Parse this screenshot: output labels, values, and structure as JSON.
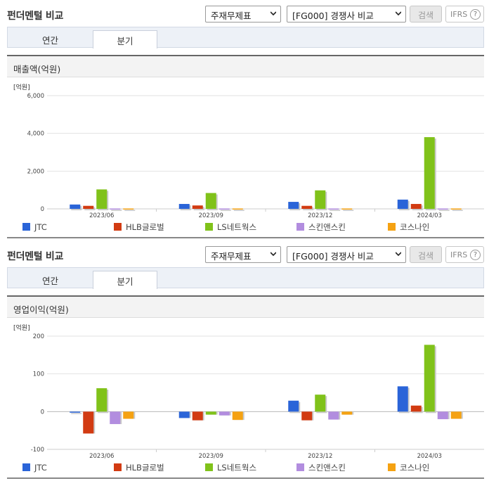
{
  "panels": [
    {
      "title": "펀더멘털 비교",
      "select1": "주재무제표",
      "select2": "[FG000] 경쟁사 비교",
      "search_label": "검색",
      "ifrs_label": "IFRS",
      "help": "?",
      "tabs": [
        "연간",
        "분기"
      ],
      "active_tab": "분기",
      "chart_title": "매출액(억원)"
    },
    {
      "title": "펀더멘털 비교",
      "select1": "주재무제표",
      "select2": "[FG000] 경쟁사 비교",
      "search_label": "검색",
      "ifrs_label": "IFRS",
      "help": "?",
      "tabs": [
        "연간",
        "분기"
      ],
      "active_tab": "분기",
      "chart_title": "영업이익(억원)"
    }
  ],
  "chart_data": [
    {
      "type": "bar",
      "unit_label": "[억원]",
      "categories": [
        "2023/06",
        "2023/09",
        "2023/12",
        "2024/03"
      ],
      "ylim": [
        0,
        6000
      ],
      "yticks": [
        0,
        2000,
        4000,
        6000
      ],
      "ytick_labels": [
        "0",
        "2,000",
        "4,000",
        "6,000"
      ],
      "grid": true,
      "legend_position": "bottom",
      "series": [
        {
          "name": "JTC",
          "color": "#2a64d8",
          "values": [
            230,
            260,
            370,
            490
          ]
        },
        {
          "name": "HLB글로벌",
          "color": "#d23b12",
          "values": [
            160,
            180,
            160,
            260
          ]
        },
        {
          "name": "LS네트웍스",
          "color": "#80c21a",
          "values": [
            1030,
            840,
            980,
            3800
          ]
        },
        {
          "name": "스킨앤스킨",
          "color": "#b28ddf",
          "values": [
            20,
            20,
            20,
            20
          ]
        },
        {
          "name": "코스나인",
          "color": "#f5a212",
          "values": [
            20,
            20,
            20,
            20
          ]
        }
      ]
    },
    {
      "type": "bar",
      "unit_label": "[억원]",
      "categories": [
        "2023/06",
        "2023/09",
        "2023/12",
        "2024/03"
      ],
      "ylim": [
        -100,
        200
      ],
      "yticks": [
        -100,
        0,
        100,
        200
      ],
      "ytick_labels": [
        "-100",
        "0",
        "100",
        "200"
      ],
      "grid": true,
      "legend_position": "bottom",
      "series": [
        {
          "name": "JTC",
          "color": "#2a64d8",
          "values": [
            0,
            -17,
            29,
            67
          ]
        },
        {
          "name": "HLB글로벌",
          "color": "#d23b12",
          "values": [
            -58,
            -23,
            -23,
            16
          ]
        },
        {
          "name": "LS네트웍스",
          "color": "#80c21a",
          "values": [
            62,
            -8,
            45,
            177
          ]
        },
        {
          "name": "스킨앤스킨",
          "color": "#b28ddf",
          "values": [
            -33,
            -10,
            -21,
            -20
          ]
        },
        {
          "name": "코스나인",
          "color": "#f5a212",
          "values": [
            -19,
            -22,
            -8,
            -19
          ]
        }
      ]
    }
  ]
}
